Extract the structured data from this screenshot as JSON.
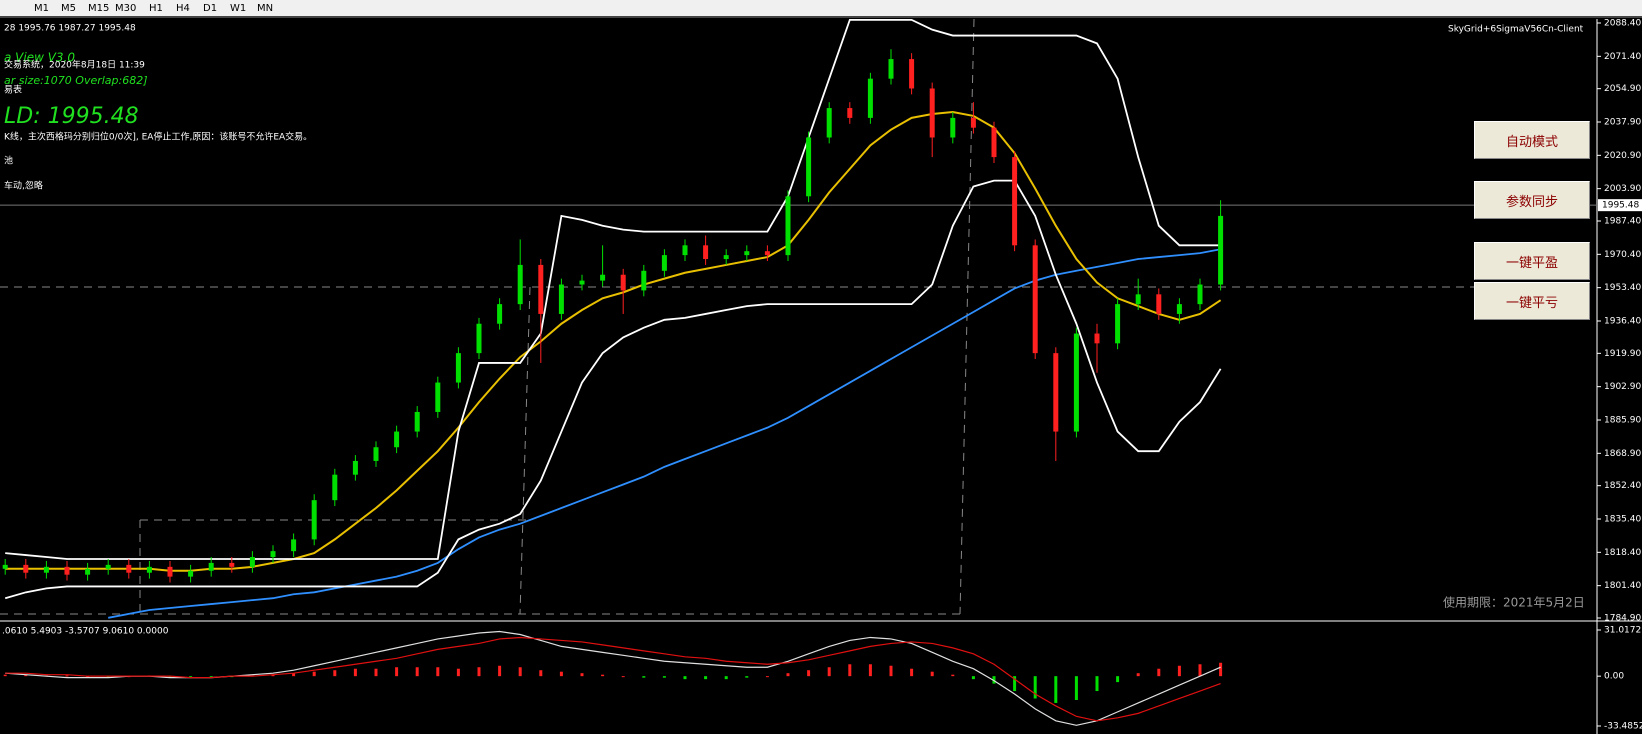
{
  "toolbar": {
    "timeframes": [
      "M1",
      "M5",
      "M15",
      "M30",
      "H1",
      "H4",
      "D1",
      "W1",
      "MN"
    ]
  },
  "info": {
    "ohlc": "28 1995.76 1987.27 1995.48",
    "version": "a View V3.0",
    "system": "交易系统，2020年8月18日 11:39",
    "bar_size": "ar size:1070 Overlap:682]",
    "table": "易表",
    "symbol_price": "LD: 1995.48",
    "status": "K线，主次西格玛分别归位0/0次], EA停止工作,原因：该账号不允许EA交易。",
    "pool": "池",
    "action": "车动,忽略",
    "client": "SkyGrid+6SigmaV56Cn-Client",
    "expiry": "使用期限：2021年5月2日"
  },
  "buttons": [
    "自动模式",
    "参数同步",
    "一键平盈",
    "一键平亏"
  ],
  "chart_data": {
    "type": "candlestick",
    "candles": [
      [
        1810,
        1815,
        1807,
        1812
      ],
      [
        1812,
        1815,
        1805,
        1808
      ],
      [
        1808,
        1814,
        1805,
        1811
      ],
      [
        1811,
        1814,
        1804,
        1807
      ],
      [
        1807,
        1813,
        1804,
        1810
      ],
      [
        1810,
        1815,
        1807,
        1812
      ],
      [
        1812,
        1815,
        1805,
        1808
      ],
      [
        1808,
        1814,
        1805,
        1811
      ],
      [
        1811,
        1814,
        1803,
        1806
      ],
      [
        1806,
        1812,
        1803,
        1809
      ],
      [
        1809,
        1816,
        1806,
        1813
      ],
      [
        1813,
        1816,
        1808,
        1811
      ],
      [
        1811,
        1819,
        1808,
        1816
      ],
      [
        1816,
        1822,
        1813,
        1819
      ],
      [
        1819,
        1828,
        1816,
        1825
      ],
      [
        1825,
        1848,
        1822,
        1845
      ],
      [
        1845,
        1861,
        1842,
        1858
      ],
      [
        1858,
        1868,
        1855,
        1865
      ],
      [
        1865,
        1875,
        1862,
        1872
      ],
      [
        1872,
        1883,
        1869,
        1880
      ],
      [
        1880,
        1893,
        1877,
        1890
      ],
      [
        1890,
        1908,
        1887,
        1905
      ],
      [
        1905,
        1923,
        1902,
        1920
      ],
      [
        1920,
        1938,
        1917,
        1935
      ],
      [
        1935,
        1948,
        1932,
        1945
      ],
      [
        1945,
        1978,
        1942,
        1965
      ],
      [
        1965,
        1968,
        1915,
        1940
      ],
      [
        1940,
        1958,
        1937,
        1955
      ],
      [
        1955,
        1960,
        1952,
        1957
      ],
      [
        1957,
        1975,
        1954,
        1960
      ],
      [
        1960,
        1963,
        1940,
        1952
      ],
      [
        1952,
        1965,
        1949,
        1962
      ],
      [
        1962,
        1973,
        1959,
        1970
      ],
      [
        1970,
        1978,
        1967,
        1975
      ],
      [
        1975,
        1980,
        1965,
        1968
      ],
      [
        1968,
        1973,
        1965,
        1970
      ],
      [
        1970,
        1975,
        1967,
        1972
      ],
      [
        1972,
        1975,
        1967,
        1970
      ],
      [
        1970,
        2003,
        1967,
        2000
      ],
      [
        2000,
        2033,
        1997,
        2030
      ],
      [
        2030,
        2048,
        2027,
        2045
      ],
      [
        2045,
        2048,
        2037,
        2040
      ],
      [
        2040,
        2063,
        2037,
        2060
      ],
      [
        2060,
        2075,
        2057,
        2070
      ],
      [
        2070,
        2073,
        2052,
        2055
      ],
      [
        2055,
        2058,
        2020,
        2030
      ],
      [
        2030,
        2043,
        2027,
        2040
      ],
      [
        2040,
        2048,
        2032,
        2035
      ],
      [
        2035,
        2038,
        2017,
        2020
      ],
      [
        2020,
        2023,
        1972,
        1975
      ],
      [
        1975,
        1978,
        1917,
        1920
      ],
      [
        1920,
        1923,
        1865,
        1880
      ],
      [
        1880,
        1933,
        1877,
        1930
      ],
      [
        1930,
        1935,
        1910,
        1925
      ],
      [
        1925,
        1948,
        1922,
        1945
      ],
      [
        1945,
        1958,
        1942,
        1950
      ],
      [
        1950,
        1953,
        1937,
        1940
      ],
      [
        1940,
        1948,
        1935,
        1945
      ],
      [
        1945,
        1958,
        1942,
        1955
      ],
      [
        1955,
        1998,
        1952,
        1990
      ]
    ],
    "up_color": "#00e000",
    "down_color": "#ff2020",
    "series": [
      {
        "color": "#2f8fff",
        "values": [
          null,
          null,
          null,
          null,
          null,
          1785,
          1787,
          1789,
          1790,
          1791,
          1792,
          1793,
          1794,
          1795,
          1797,
          1798,
          1800,
          1802,
          1804,
          1806,
          1809,
          1813,
          1820,
          1826,
          1830,
          1833,
          1837,
          1841,
          1845,
          1849,
          1853,
          1857,
          1862,
          1866,
          1870,
          1874,
          1878,
          1882,
          1887,
          1893,
          1899,
          1905,
          1911,
          1917,
          1923,
          1929,
          1935,
          1941,
          1947,
          1953,
          1957,
          1960,
          1962,
          1964,
          1966,
          1968,
          1969,
          1970,
          1971,
          1973
        ]
      },
      {
        "color": "#e8c000",
        "values": [
          1810,
          1810,
          1810,
          1810,
          1810,
          1810,
          1810,
          1810,
          1809,
          1809,
          1810,
          1810,
          1811,
          1813,
          1815,
          1818,
          1825,
          1833,
          1841,
          1850,
          1860,
          1870,
          1882,
          1895,
          1907,
          1918,
          1926,
          1935,
          1942,
          1948,
          1951,
          1955,
          1958,
          1961,
          1963,
          1965,
          1967,
          1969,
          1975,
          1988,
          2002,
          2014,
          2026,
          2034,
          2040,
          2042,
          2043,
          2041,
          2035,
          2022,
          2004,
          1985,
          1968,
          1956,
          1948,
          1944,
          1940,
          1937,
          1940,
          1947
        ]
      },
      {
        "color": "#ffffff",
        "values": [
          1818,
          1817,
          1816,
          1815,
          1815,
          1815,
          1815,
          1815,
          1815,
          1815,
          1815,
          1815,
          1815,
          1815,
          1815,
          1815,
          1815,
          1815,
          1815,
          1815,
          1815,
          1815,
          1880,
          1915,
          1915,
          1915,
          1930,
          1990,
          1988,
          1985,
          1983,
          1982,
          1982,
          1982,
          1982,
          1982,
          1982,
          1982,
          2000,
          2030,
          2060,
          2090,
          2090,
          2090,
          2090,
          2085,
          2082,
          2082,
          2082,
          2082,
          2082,
          2082,
          2082,
          2078,
          2060,
          2020,
          1985,
          1975,
          1975,
          1975
        ]
      },
      {
        "color": "#ffffff",
        "values": [
          1795,
          1798,
          1800,
          1801,
          1801,
          1801,
          1801,
          1801,
          1801,
          1801,
          1801,
          1801,
          1801,
          1801,
          1801,
          1801,
          1801,
          1801,
          1801,
          1801,
          1801,
          1808,
          1825,
          1830,
          1833,
          1838,
          1855,
          1880,
          1905,
          1920,
          1928,
          1933,
          1937,
          1938,
          1940,
          1942,
          1944,
          1945,
          1945,
          1945,
          1945,
          1945,
          1945,
          1945,
          1945,
          1955,
          1985,
          2005,
          2008,
          2008,
          1990,
          1960,
          1935,
          1905,
          1880,
          1870,
          1870,
          1885,
          1895,
          1912
        ]
      }
    ],
    "current_price": 1995.48,
    "ylim": [
      1783.88,
      2090.44
    ],
    "yticks": [
      {
        "value": 2088.4,
        "label": "2088.40"
      },
      {
        "value": 2071.4,
        "label": "2071.40"
      },
      {
        "value": 2054.9,
        "label": "2054.90"
      },
      {
        "value": 2037.9,
        "label": "2037.90"
      },
      {
        "value": 2020.9,
        "label": "2020.90"
      },
      {
        "value": 2003.9,
        "label": "2003.90"
      },
      {
        "value": 1987.4,
        "label": "1987.40"
      },
      {
        "value": 1970.4,
        "label": "1970.40"
      },
      {
        "value": 1953.4,
        "label": "1953.40"
      },
      {
        "value": 1936.4,
        "label": "1936.40"
      },
      {
        "value": 1919.9,
        "label": "1919.90"
      },
      {
        "value": 1902.9,
        "label": "1902.90"
      },
      {
        "value": 1885.9,
        "label": "1885.90"
      },
      {
        "value": 1868.9,
        "label": "1868.90"
      },
      {
        "value": 1852.4,
        "label": "1852.40"
      },
      {
        "value": 1835.4,
        "label": "1835.40"
      },
      {
        "value": 1818.4,
        "label": "1818.40"
      },
      {
        "value": 1801.4,
        "label": "1801.40"
      },
      {
        "value": 1784.9,
        "label": "1784.90"
      }
    ],
    "macd": {
      "label": ".0610 5.4903 -3.5707 9.0610 0.0000",
      "histogram": [
        1,
        1,
        0.5,
        0.5,
        0,
        -0.5,
        0,
        0.5,
        -0.5,
        -1,
        -1,
        -0.5,
        0.5,
        1,
        2,
        3,
        4,
        5,
        5,
        6,
        6,
        6,
        5,
        6,
        7,
        6,
        4,
        3,
        2,
        1,
        0,
        -1,
        -1,
        -2,
        -2,
        -2,
        -1,
        0,
        2,
        4,
        6,
        8,
        8,
        7,
        5,
        3,
        1,
        -2,
        -5,
        -10,
        -15,
        -18,
        -16,
        -10,
        -4,
        2,
        5,
        7,
        8,
        9
      ],
      "main": [
        2,
        1,
        0,
        -1,
        -1,
        -1,
        0,
        0,
        -1,
        -1,
        -1,
        0,
        1,
        2,
        4,
        7,
        10,
        13,
        16,
        19,
        22,
        25,
        27,
        29,
        30,
        28,
        24,
        20,
        18,
        16,
        14,
        12,
        10,
        9,
        8,
        7,
        6,
        6,
        10,
        15,
        20,
        24,
        26,
        25,
        22,
        16,
        10,
        5,
        -3,
        -12,
        -22,
        -30,
        -33,
        -30,
        -24,
        -18,
        -12,
        -6,
        0,
        6
      ],
      "signal": [
        2,
        2,
        1,
        1,
        0,
        0,
        0,
        0,
        0,
        -1,
        -1,
        0,
        0,
        1,
        2,
        4,
        6,
        8,
        10,
        12,
        15,
        18,
        20,
        22,
        25,
        26,
        25,
        24,
        23,
        21,
        19,
        17,
        15,
        13,
        12,
        10,
        9,
        8,
        9,
        11,
        14,
        17,
        20,
        22,
        23,
        22,
        19,
        15,
        8,
        -2,
        -12,
        -20,
        -27,
        -30,
        -28,
        -25,
        -20,
        -15,
        -10,
        -5
      ],
      "main_color": "#e0e0e0",
      "signal_color": "#e01010",
      "pos_color": "#ff2020",
      "neg_color": "#00e000",
      "ylim": [
        -38.86,
        36.39
      ],
      "yticks": [
        31.0172,
        {
          "value": 0,
          "label": "0.00"
        },
        -33.4852
      ]
    }
  }
}
